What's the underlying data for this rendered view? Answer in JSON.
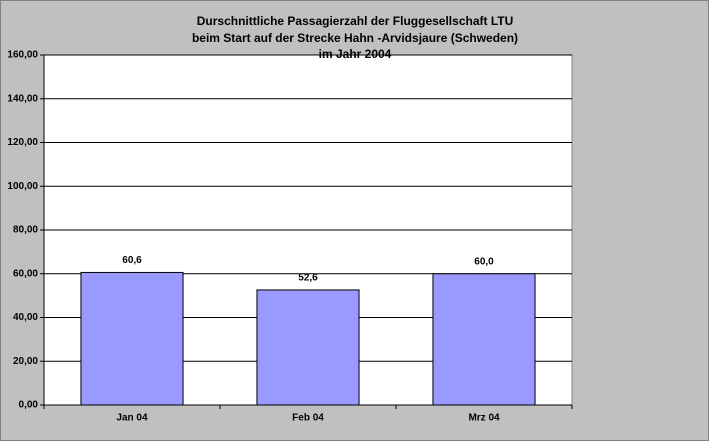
{
  "chart_data": {
    "type": "bar",
    "title": [
      "Durschnittliche Passagierzahl der Fluggesellschaft LTU",
      "beim Start auf der Strecke Hahn -Arvidsjaure (Schweden)",
      "im Jahr 2004"
    ],
    "categories": [
      "Jan 04",
      "Feb 04",
      "Mrz 04"
    ],
    "values": [
      60.6,
      52.6,
      60.0
    ],
    "value_labels": [
      "60,6",
      "52,6",
      "60,0"
    ],
    "color": "#9999ff",
    "ylim": [
      0,
      160
    ],
    "yticks": [
      {
        "value": 0,
        "label": "0,00"
      },
      {
        "value": 20,
        "label": "20,00"
      },
      {
        "value": 40,
        "label": "40,00"
      },
      {
        "value": 60,
        "label": "60,00"
      },
      {
        "value": 80,
        "label": "80,00"
      },
      {
        "value": 100,
        "label": "100,00"
      },
      {
        "value": 120,
        "label": "120,00"
      },
      {
        "value": 140,
        "label": "140,00"
      },
      {
        "value": 160,
        "label": "160,00"
      }
    ],
    "grid": true
  }
}
